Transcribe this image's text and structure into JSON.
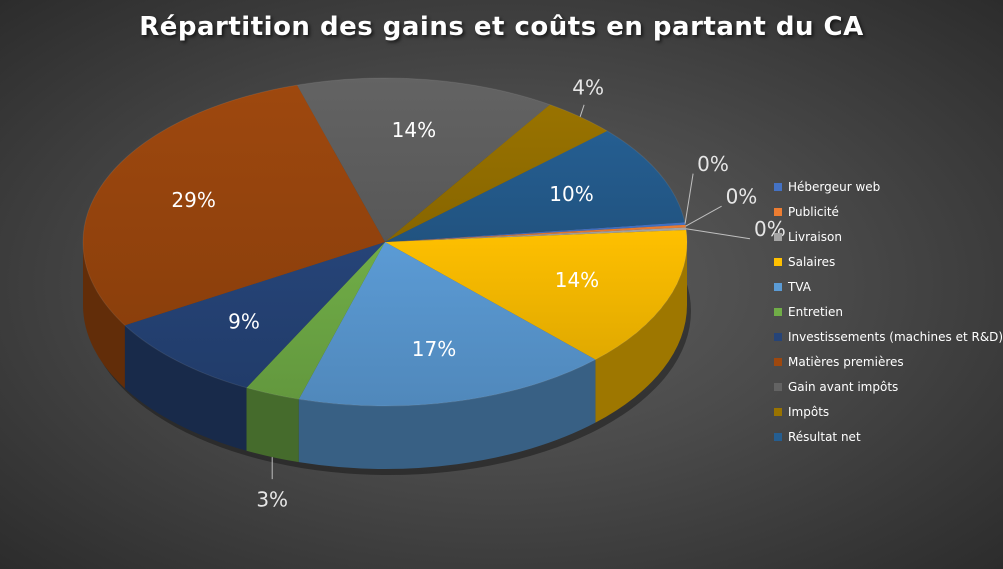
{
  "chart_data": {
    "type": "pie",
    "title": "Répartition des gains et coûts en partant du CA",
    "legend_position": "right",
    "slices": [
      {
        "name": "Hébergeur web",
        "value": 0,
        "label": "0%",
        "color": "#4472c4"
      },
      {
        "name": "Publicité",
        "value": 0,
        "label": "0%",
        "color": "#ed7d31"
      },
      {
        "name": "Livraison",
        "value": 0,
        "label": "0%",
        "color": "#a5a5a5"
      },
      {
        "name": "Salaires",
        "value": 14,
        "label": "14%",
        "color": "#ffc000"
      },
      {
        "name": "TVA",
        "value": 17,
        "label": "17%",
        "color": "#5b9bd5"
      },
      {
        "name": "Entretien",
        "value": 3,
        "label": "3%",
        "color": "#70ad47"
      },
      {
        "name": "Investissements (machines et R&D)",
        "value": 9,
        "label": "9%",
        "color": "#264478"
      },
      {
        "name": "Matières premières",
        "value": 29,
        "label": "29%",
        "color": "#9e480e"
      },
      {
        "name": "Gain avant impôts",
        "value": 14,
        "label": "14%",
        "color": "#636363"
      },
      {
        "name": "Impôts",
        "value": 4,
        "label": "4%",
        "color": "#997300"
      },
      {
        "name": "Résultat net",
        "value": 10,
        "label": "10%",
        "color": "#255e91"
      }
    ]
  }
}
